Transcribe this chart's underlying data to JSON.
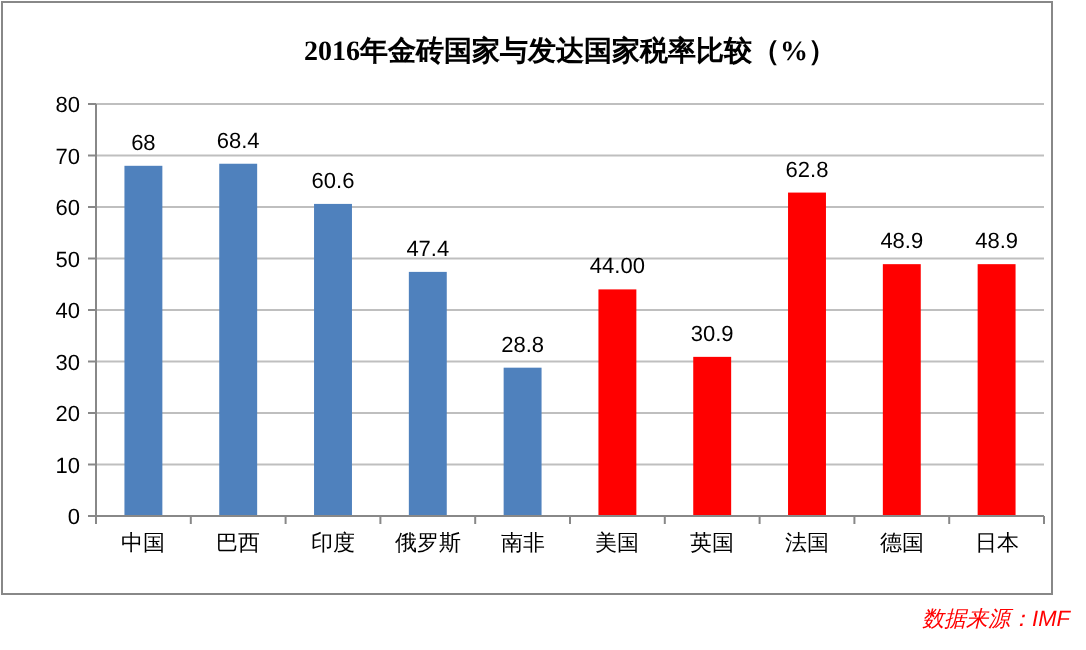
{
  "chart_data": {
    "type": "bar",
    "title": "2016年金砖国家与发达国家税率比较（%）",
    "categories": [
      "中国",
      "巴西",
      "印度",
      "俄罗斯",
      "南非",
      "美国",
      "英国",
      "法国",
      "德国",
      "日本"
    ],
    "values": [
      68,
      68.4,
      60.6,
      47.4,
      28.8,
      44.0,
      30.9,
      62.8,
      48.9,
      48.9
    ],
    "colors": [
      "#4f81bd",
      "#4f81bd",
      "#4f81bd",
      "#4f81bd",
      "#4f81bd",
      "#ff0000",
      "#ff0000",
      "#ff0000",
      "#ff0000",
      "#ff0000"
    ],
    "value_labels": [
      "68",
      "68.4",
      "60.6",
      "47.4",
      "28.8",
      "44.00",
      "30.9",
      "62.8",
      "48.9",
      "48.9"
    ],
    "ylim": [
      0,
      80
    ],
    "yticks": [
      0,
      10,
      20,
      30,
      40,
      50,
      60,
      70,
      80
    ],
    "grid": "y",
    "annotations": [
      "数据来源：IMF"
    ]
  }
}
